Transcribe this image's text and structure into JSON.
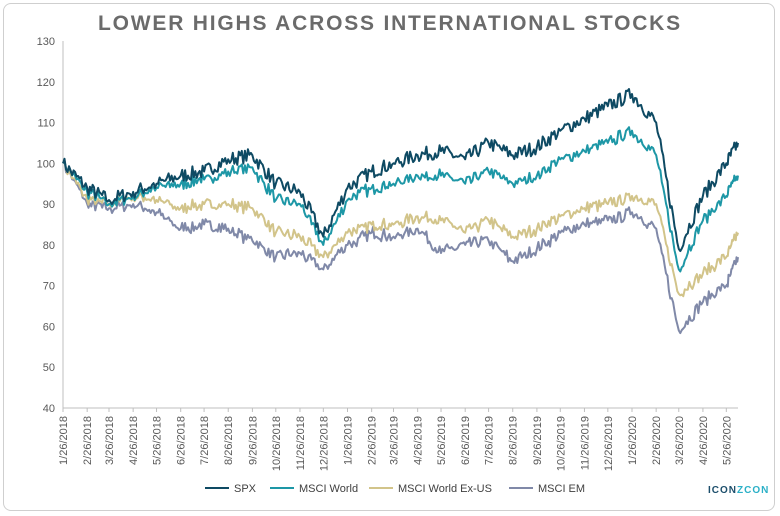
{
  "title": "LOWER HIGHS ACROSS INTERNATIONAL STOCKS",
  "logo": {
    "text_left": "ICON",
    "text_right": "ZCON"
  },
  "chart_data": {
    "type": "line",
    "title": "LOWER HIGHS ACROSS INTERNATIONAL STOCKS",
    "xlabel": "",
    "ylabel": "",
    "ylim": [
      40,
      130
    ],
    "yticks": [
      40,
      50,
      60,
      70,
      80,
      90,
      100,
      110,
      120,
      130
    ],
    "grid": false,
    "legend_position": "bottom",
    "x_tick_labels": [
      "1/26/2018",
      "2/26/2018",
      "3/26/2018",
      "4/26/2018",
      "5/26/2018",
      "6/26/2018",
      "7/26/2018",
      "8/26/2018",
      "9/26/2018",
      "10/26/2018",
      "11/26/2018",
      "12/26/2018",
      "1/26/2019",
      "2/26/2019",
      "3/26/2019",
      "4/26/2019",
      "5/26/2019",
      "6/26/2019",
      "7/26/2019",
      "8/26/2019",
      "9/26/2019",
      "10/26/2019",
      "11/26/2019",
      "12/26/2019",
      "1/26/2020",
      "2/26/2020",
      "3/26/2020",
      "4/26/2020",
      "5/26/2020"
    ],
    "x": [
      "1/26/2018",
      "2/26/2018",
      "3/26/2018",
      "4/26/2018",
      "5/26/2018",
      "6/26/2018",
      "7/26/2018",
      "8/26/2018",
      "9/26/2018",
      "10/26/2018",
      "11/26/2018",
      "12/26/2018",
      "1/26/2019",
      "2/26/2019",
      "3/26/2019",
      "4/26/2019",
      "5/26/2019",
      "6/26/2019",
      "7/26/2019",
      "8/26/2019",
      "9/26/2019",
      "10/26/2019",
      "11/26/2019",
      "12/26/2019",
      "1/26/2020",
      "2/26/2020",
      "3/26/2020",
      "4/26/2020",
      "5/26/2020",
      "6/10/2020"
    ],
    "series": [
      {
        "name": "SPX",
        "color": "#0e4a63",
        "values": [
          100,
          94,
          91,
          93,
          95,
          97,
          98,
          101,
          102,
          95,
          93,
          82,
          94,
          98,
          100,
          102,
          103,
          101,
          105,
          102,
          104,
          108,
          111,
          114,
          117,
          110,
          79,
          92,
          100,
          105
        ]
      },
      {
        "name": "MSCI World",
        "color": "#1d97a6",
        "values": [
          100,
          93,
          90,
          92,
          94,
          95,
          96,
          98,
          99,
          91,
          90,
          80,
          91,
          94,
          95,
          97,
          97,
          95,
          98,
          95,
          97,
          101,
          103,
          105,
          108,
          102,
          74,
          86,
          92,
          97
        ]
      },
      {
        "name": "MSCI World Ex-US",
        "color": "#d2c48a",
        "values": [
          100,
          91,
          90,
          92,
          91,
          89,
          90,
          90,
          89,
          83,
          82,
          77,
          83,
          85,
          85,
          87,
          86,
          83,
          86,
          82,
          84,
          87,
          89,
          90,
          92,
          90,
          68,
          73,
          77,
          83
        ]
      },
      {
        "name": "MSCI EM",
        "color": "#8089a8",
        "values": [
          100,
          90,
          89,
          90,
          88,
          84,
          85,
          84,
          81,
          77,
          78,
          74,
          80,
          83,
          82,
          84,
          78,
          80,
          81,
          76,
          79,
          83,
          85,
          86,
          88,
          84,
          59,
          66,
          70,
          77
        ]
      }
    ]
  }
}
